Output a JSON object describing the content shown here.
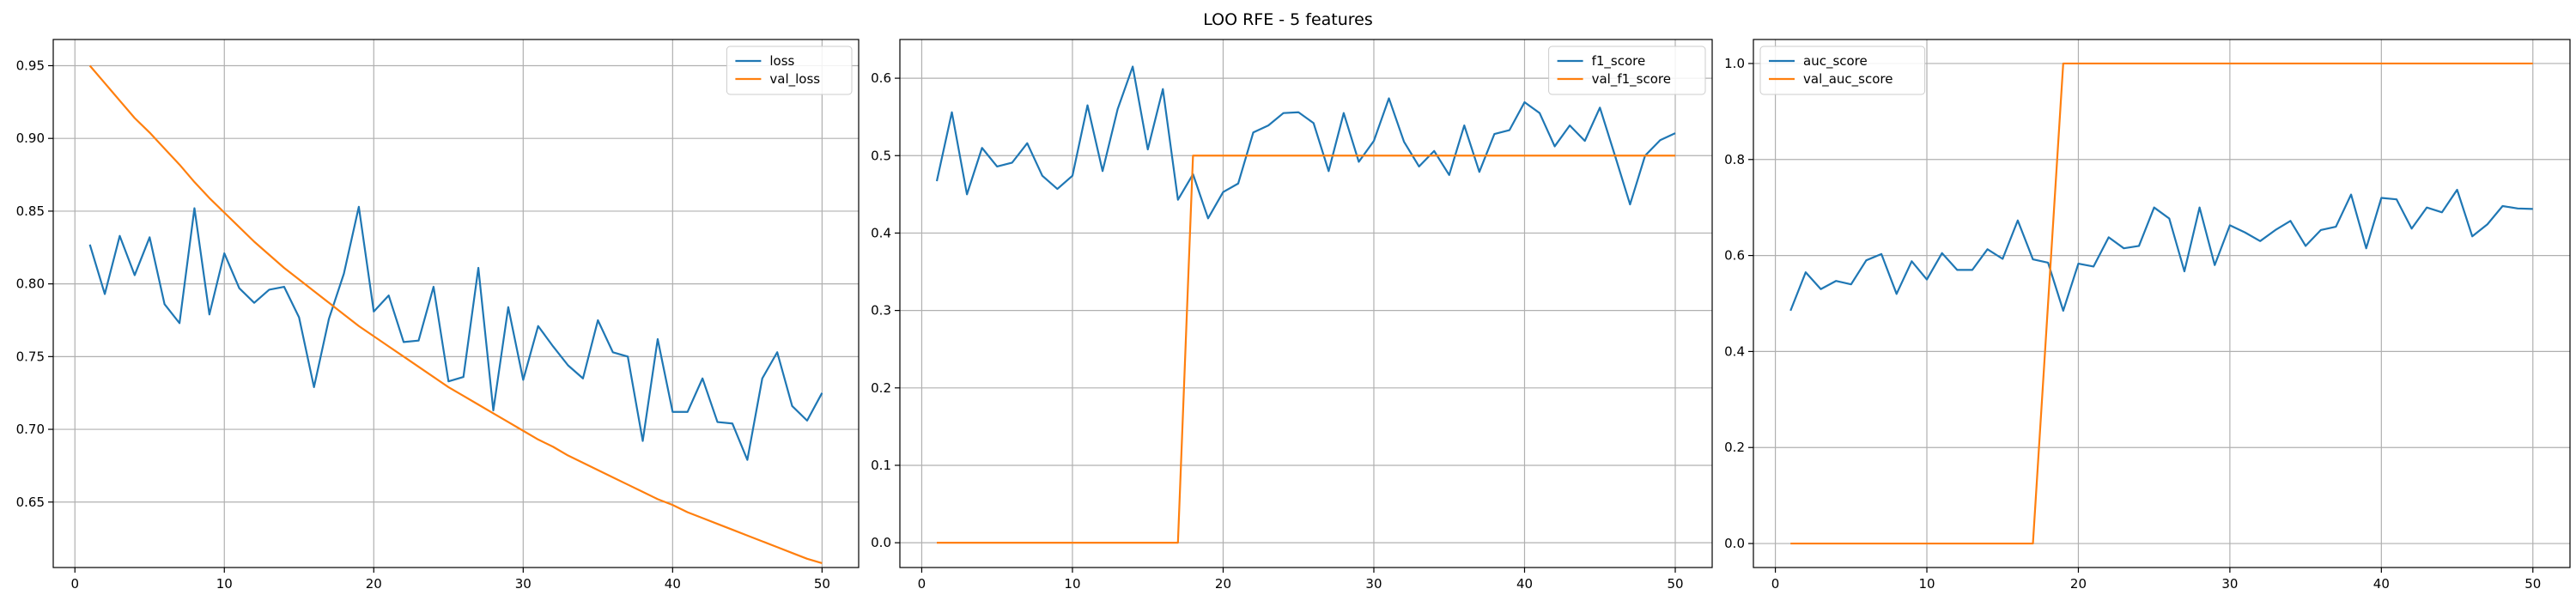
{
  "figure": {
    "title": "LOO RFE - 5 features"
  },
  "colors": {
    "blue": "#1f77b4",
    "orange": "#ff7f0e",
    "grid": "#b0b0b0"
  },
  "chart_data": [
    {
      "type": "line",
      "xlim": [
        -1.45,
        52.45
      ],
      "ylim": [
        0.605,
        0.968
      ],
      "xticks": [
        0,
        10,
        20,
        30,
        40,
        50
      ],
      "yticks": [
        0.65,
        0.7,
        0.75,
        0.8,
        0.85,
        0.9,
        0.95
      ],
      "ytick_labels": [
        "0.65",
        "0.70",
        "0.75",
        "0.80",
        "0.85",
        "0.90",
        "0.95"
      ],
      "grid": true,
      "legend": "upper right",
      "x": [
        1,
        2,
        3,
        4,
        5,
        6,
        7,
        8,
        9,
        10,
        11,
        12,
        13,
        14,
        15,
        16,
        17,
        18,
        19,
        20,
        21,
        22,
        23,
        24,
        25,
        26,
        27,
        28,
        29,
        30,
        31,
        32,
        33,
        34,
        35,
        36,
        37,
        38,
        39,
        40,
        41,
        42,
        43,
        44,
        45,
        46,
        47,
        48,
        49,
        50
      ],
      "series": [
        {
          "name": "loss",
          "color": "#1f77b4",
          "values": [
            0.827,
            0.793,
            0.833,
            0.806,
            0.832,
            0.786,
            0.773,
            0.852,
            0.779,
            0.821,
            0.797,
            0.787,
            0.796,
            0.798,
            0.777,
            0.729,
            0.776,
            0.807,
            0.853,
            0.781,
            0.792,
            0.76,
            0.761,
            0.798,
            0.733,
            0.736,
            0.811,
            0.713,
            0.784,
            0.734,
            0.771,
            0.757,
            0.744,
            0.735,
            0.775,
            0.753,
            0.75,
            0.692,
            0.762,
            0.712,
            0.712,
            0.735,
            0.705,
            0.704,
            0.679,
            0.735,
            0.753,
            0.716,
            0.706,
            0.725
          ]
        },
        {
          "name": "val_loss",
          "color": "#ff7f0e",
          "values": [
            0.95,
            0.938,
            0.926,
            0.914,
            0.904,
            0.893,
            0.882,
            0.87,
            0.859,
            0.849,
            0.839,
            0.829,
            0.82,
            0.811,
            0.803,
            0.795,
            0.787,
            0.779,
            0.771,
            0.764,
            0.757,
            0.75,
            0.743,
            0.736,
            0.729,
            0.723,
            0.717,
            0.711,
            0.705,
            0.699,
            0.693,
            0.688,
            0.682,
            0.677,
            0.672,
            0.667,
            0.662,
            0.657,
            0.652,
            0.648,
            0.643,
            0.639,
            0.635,
            0.631,
            0.627,
            0.623,
            0.619,
            0.615,
            0.611,
            0.608
          ]
        }
      ]
    },
    {
      "type": "line",
      "xlim": [
        -1.45,
        52.45
      ],
      "ylim": [
        -0.032,
        0.65
      ],
      "xticks": [
        0,
        10,
        20,
        30,
        40,
        50
      ],
      "yticks": [
        0.0,
        0.1,
        0.2,
        0.3,
        0.4,
        0.5,
        0.6
      ],
      "ytick_labels": [
        "0.0",
        "0.1",
        "0.2",
        "0.3",
        "0.4",
        "0.5",
        "0.6"
      ],
      "grid": true,
      "legend": "upper right",
      "x": [
        1,
        2,
        3,
        4,
        5,
        6,
        7,
        8,
        9,
        10,
        11,
        12,
        13,
        14,
        15,
        16,
        17,
        18,
        19,
        20,
        21,
        22,
        23,
        24,
        25,
        26,
        27,
        28,
        29,
        30,
        31,
        32,
        33,
        34,
        35,
        36,
        37,
        38,
        39,
        40,
        41,
        42,
        43,
        44,
        45,
        46,
        47,
        48,
        49,
        50
      ],
      "series": [
        {
          "name": "f1_score",
          "color": "#1f77b4",
          "values": [
            0.467,
            0.556,
            0.45,
            0.51,
            0.486,
            0.491,
            0.516,
            0.474,
            0.457,
            0.474,
            0.565,
            0.48,
            0.56,
            0.615,
            0.508,
            0.586,
            0.443,
            0.476,
            0.419,
            0.453,
            0.464,
            0.53,
            0.539,
            0.555,
            0.556,
            0.542,
            0.48,
            0.555,
            0.492,
            0.519,
            0.574,
            0.518,
            0.486,
            0.506,
            0.475,
            0.539,
            0.479,
            0.528,
            0.533,
            0.569,
            0.555,
            0.512,
            0.539,
            0.519,
            0.562,
            0.5,
            0.437,
            0.5,
            0.52,
            0.529
          ]
        },
        {
          "name": "val_f1_score",
          "color": "#ff7f0e",
          "values": [
            0.0,
            0.0,
            0.0,
            0.0,
            0.0,
            0.0,
            0.0,
            0.0,
            0.0,
            0.0,
            0.0,
            0.0,
            0.0,
            0.0,
            0.0,
            0.0,
            0.0,
            0.5,
            0.5,
            0.5,
            0.5,
            0.5,
            0.5,
            0.5,
            0.5,
            0.5,
            0.5,
            0.5,
            0.5,
            0.5,
            0.5,
            0.5,
            0.5,
            0.5,
            0.5,
            0.5,
            0.5,
            0.5,
            0.5,
            0.5,
            0.5,
            0.5,
            0.5,
            0.5,
            0.5,
            0.5,
            0.5,
            0.5,
            0.5,
            0.5
          ]
        }
      ]
    },
    {
      "type": "line",
      "xlim": [
        -1.45,
        52.45
      ],
      "ylim": [
        -0.05,
        1.05
      ],
      "xticks": [
        0,
        10,
        20,
        30,
        40,
        50
      ],
      "yticks": [
        0.0,
        0.2,
        0.4,
        0.6,
        0.8,
        1.0
      ],
      "ytick_labels": [
        "0.0",
        "0.2",
        "0.4",
        "0.6",
        "0.8",
        "1.0"
      ],
      "grid": true,
      "legend": "upper left",
      "x": [
        1,
        2,
        3,
        4,
        5,
        6,
        7,
        8,
        9,
        10,
        11,
        12,
        13,
        14,
        15,
        16,
        17,
        18,
        19,
        20,
        21,
        22,
        23,
        24,
        25,
        26,
        27,
        28,
        29,
        30,
        31,
        32,
        33,
        34,
        35,
        36,
        37,
        38,
        39,
        40,
        41,
        42,
        43,
        44,
        45,
        46,
        47,
        48,
        49,
        50
      ],
      "series": [
        {
          "name": "auc_score",
          "color": "#1f77b4",
          "values": [
            0.485,
            0.565,
            0.53,
            0.547,
            0.54,
            0.59,
            0.603,
            0.52,
            0.588,
            0.55,
            0.605,
            0.57,
            0.57,
            0.613,
            0.593,
            0.673,
            0.592,
            0.585,
            0.485,
            0.583,
            0.577,
            0.638,
            0.615,
            0.62,
            0.7,
            0.677,
            0.567,
            0.7,
            0.58,
            0.663,
            0.648,
            0.63,
            0.653,
            0.672,
            0.62,
            0.653,
            0.66,
            0.727,
            0.615,
            0.72,
            0.717,
            0.656,
            0.7,
            0.69,
            0.737,
            0.64,
            0.665,
            0.703,
            0.698,
            0.697
          ]
        },
        {
          "name": "val_auc_score",
          "color": "#ff7f0e",
          "values": [
            0.0,
            0.0,
            0.0,
            0.0,
            0.0,
            0.0,
            0.0,
            0.0,
            0.0,
            0.0,
            0.0,
            0.0,
            0.0,
            0.0,
            0.0,
            0.0,
            0.0,
            0.5,
            1.0,
            1.0,
            1.0,
            1.0,
            1.0,
            1.0,
            1.0,
            1.0,
            1.0,
            1.0,
            1.0,
            1.0,
            1.0,
            1.0,
            1.0,
            1.0,
            1.0,
            1.0,
            1.0,
            1.0,
            1.0,
            1.0,
            1.0,
            1.0,
            1.0,
            1.0,
            1.0,
            1.0,
            1.0,
            1.0,
            1.0,
            1.0
          ]
        }
      ]
    }
  ]
}
